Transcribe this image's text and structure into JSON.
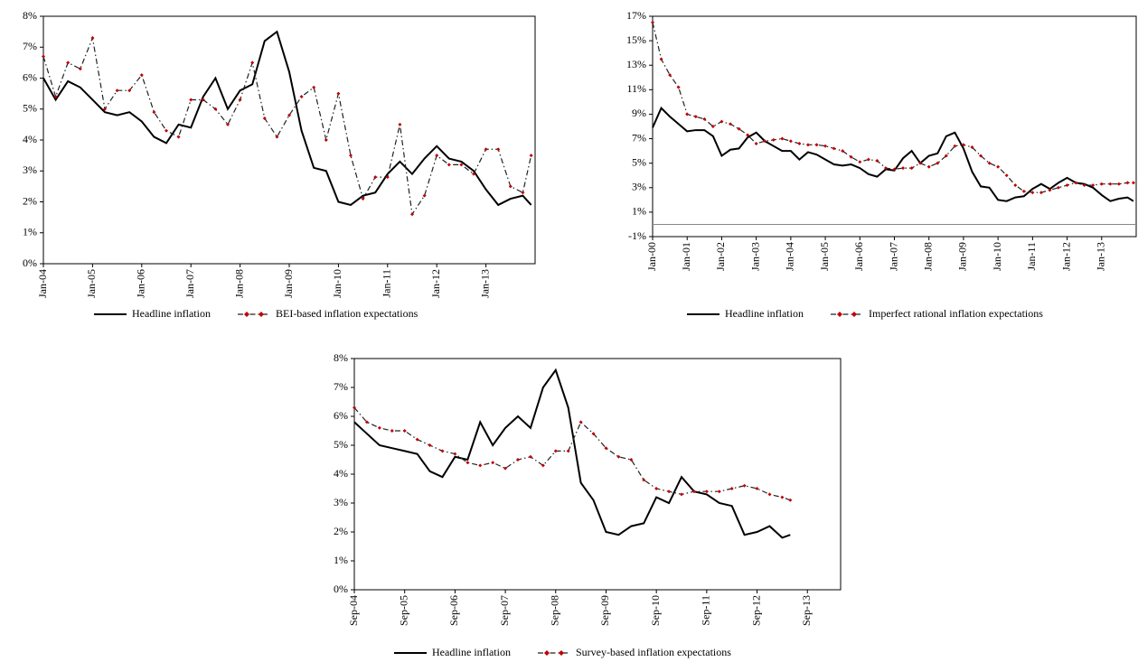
{
  "chart_data": [
    {
      "type": "line",
      "x": [
        2004,
        2004.25,
        2004.5,
        2004.75,
        2005,
        2005.25,
        2005.5,
        2005.75,
        2006,
        2006.25,
        2006.5,
        2006.75,
        2007,
        2007.25,
        2007.5,
        2007.75,
        2008,
        2008.25,
        2008.5,
        2008.75,
        2009,
        2009.25,
        2009.5,
        2009.75,
        2010,
        2010.25,
        2010.5,
        2010.75,
        2011,
        2011.25,
        2011.5,
        2011.75,
        2012,
        2012.25,
        2012.5,
        2012.75,
        2013,
        2013.25,
        2013.5,
        2013.75,
        2013.92
      ],
      "xlim": [
        2004,
        2014
      ],
      "xticks": [
        {
          "value": 2004,
          "label": "Jan-04"
        },
        {
          "value": 2005,
          "label": "Jan-05"
        },
        {
          "value": 2006,
          "label": "Jan-06"
        },
        {
          "value": 2007,
          "label": "Jan-07"
        },
        {
          "value": 2008,
          "label": "Jan-08"
        },
        {
          "value": 2009,
          "label": "Jan-09"
        },
        {
          "value": 2010,
          "label": "Jan-10"
        },
        {
          "value": 2011,
          "label": "Jan-11"
        },
        {
          "value": 2012,
          "label": "Jan-12"
        },
        {
          "value": 2013,
          "label": "Jan-13"
        }
      ],
      "ylim": [
        0,
        8
      ],
      "yticks": [
        {
          "value": 0,
          "label": "0%"
        },
        {
          "value": 1,
          "label": "1%"
        },
        {
          "value": 2,
          "label": "2%"
        },
        {
          "value": 3,
          "label": "3%"
        },
        {
          "value": 4,
          "label": "4%"
        },
        {
          "value": 5,
          "label": "5%"
        },
        {
          "value": 6,
          "label": "6%"
        },
        {
          "value": 7,
          "label": "7%"
        },
        {
          "value": 8,
          "label": "8%"
        }
      ],
      "series": [
        {
          "name": "Headline inflation",
          "color": "#000000",
          "style": "solid",
          "values": [
            6.0,
            5.3,
            5.9,
            5.7,
            5.3,
            4.9,
            4.8,
            4.9,
            4.6,
            4.1,
            3.9,
            4.5,
            4.4,
            5.4,
            6.0,
            5.0,
            5.6,
            5.8,
            7.2,
            7.5,
            6.2,
            4.3,
            3.1,
            3.0,
            2.0,
            1.9,
            2.2,
            2.3,
            2.9,
            3.3,
            2.9,
            3.4,
            3.8,
            3.4,
            3.3,
            3.0,
            2.4,
            1.9,
            2.1,
            2.2,
            1.9
          ]
        },
        {
          "name": "BEI-based inflation expectations",
          "color": "#c00000",
          "style": "dash-dot",
          "values": [
            6.7,
            5.4,
            6.5,
            6.3,
            7.3,
            5.0,
            5.6,
            5.6,
            6.1,
            4.9,
            4.3,
            4.1,
            5.3,
            5.3,
            5.0,
            4.5,
            5.3,
            6.5,
            4.7,
            4.1,
            4.8,
            5.4,
            5.7,
            4.0,
            5.5,
            3.5,
            2.1,
            2.8,
            2.8,
            4.5,
            1.6,
            2.2,
            3.5,
            3.2,
            3.2,
            2.9,
            3.7,
            3.7,
            2.5,
            2.3,
            3.5
          ]
        }
      ]
    },
    {
      "type": "line",
      "x": [
        2000,
        2000.25,
        2000.5,
        2000.75,
        2001,
        2001.25,
        2001.5,
        2001.75,
        2002,
        2002.25,
        2002.5,
        2002.75,
        2003,
        2003.25,
        2003.5,
        2003.75,
        2004,
        2004.25,
        2004.5,
        2004.75,
        2005,
        2005.25,
        2005.5,
        2005.75,
        2006,
        2006.25,
        2006.5,
        2006.75,
        2007,
        2007.25,
        2007.5,
        2007.75,
        2008,
        2008.25,
        2008.5,
        2008.75,
        2009,
        2009.25,
        2009.5,
        2009.75,
        2010,
        2010.25,
        2010.5,
        2010.75,
        2011,
        2011.25,
        2011.5,
        2011.75,
        2012,
        2012.25,
        2012.5,
        2012.75,
        2013,
        2013.25,
        2013.5,
        2013.75,
        2013.92
      ],
      "xlim": [
        2000,
        2014
      ],
      "xticks": [
        {
          "value": 2000,
          "label": "Jan-00"
        },
        {
          "value": 2001,
          "label": "Jan-01"
        },
        {
          "value": 2002,
          "label": "Jan-02"
        },
        {
          "value": 2003,
          "label": "Jan-03"
        },
        {
          "value": 2004,
          "label": "Jan-04"
        },
        {
          "value": 2005,
          "label": "Jan-05"
        },
        {
          "value": 2006,
          "label": "Jan-06"
        },
        {
          "value": 2007,
          "label": "Jan-07"
        },
        {
          "value": 2008,
          "label": "Jan-08"
        },
        {
          "value": 2009,
          "label": "Jan-09"
        },
        {
          "value": 2010,
          "label": "Jan-10"
        },
        {
          "value": 2011,
          "label": "Jan-11"
        },
        {
          "value": 2012,
          "label": "Jan-12"
        },
        {
          "value": 2013,
          "label": "Jan-13"
        }
      ],
      "ylim": [
        -1,
        17
      ],
      "yticks": [
        {
          "value": -1,
          "label": "-1%"
        },
        {
          "value": 1,
          "label": "1%"
        },
        {
          "value": 3,
          "label": "3%"
        },
        {
          "value": 5,
          "label": "5%"
        },
        {
          "value": 7,
          "label": "7%"
        },
        {
          "value": 9,
          "label": "9%"
        },
        {
          "value": 11,
          "label": "11%"
        },
        {
          "value": 13,
          "label": "13%"
        },
        {
          "value": 15,
          "label": "15%"
        },
        {
          "value": 17,
          "label": "17%"
        }
      ],
      "series": [
        {
          "name": "Headline inflation",
          "color": "#000000",
          "style": "solid",
          "values": [
            7.9,
            9.5,
            8.8,
            8.2,
            7.6,
            7.7,
            7.7,
            7.2,
            5.6,
            6.1,
            6.2,
            7.1,
            7.5,
            6.8,
            6.4,
            6.0,
            6.0,
            5.3,
            5.9,
            5.7,
            5.3,
            4.9,
            4.8,
            4.9,
            4.6,
            4.1,
            3.9,
            4.5,
            4.4,
            5.4,
            6.0,
            5.0,
            5.6,
            5.8,
            7.2,
            7.5,
            6.2,
            4.3,
            3.1,
            3.0,
            2.0,
            1.9,
            2.2,
            2.3,
            2.9,
            3.3,
            2.9,
            3.4,
            3.8,
            3.4,
            3.3,
            3.0,
            2.4,
            1.9,
            2.1,
            2.2,
            1.9
          ]
        },
        {
          "name": "Imperfect rational inflation expectations",
          "color": "#c00000",
          "style": "dash-dot",
          "values": [
            16.5,
            13.5,
            12.2,
            11.2,
            9.0,
            8.8,
            8.6,
            8.0,
            8.4,
            8.2,
            7.8,
            7.3,
            6.6,
            6.8,
            6.9,
            7.0,
            6.8,
            6.6,
            6.5,
            6.5,
            6.4,
            6.2,
            6.0,
            5.5,
            5.1,
            5.3,
            5.2,
            4.6,
            4.5,
            4.6,
            4.6,
            5.0,
            4.7,
            5.0,
            5.6,
            6.4,
            6.5,
            6.3,
            5.6,
            5.0,
            4.7,
            4.0,
            3.2,
            2.7,
            2.6,
            2.6,
            2.8,
            3.0,
            3.2,
            3.4,
            3.2,
            3.2,
            3.3,
            3.3,
            3.3,
            3.4,
            3.4
          ]
        }
      ]
    },
    {
      "type": "line",
      "x": [
        2004.67,
        2004.92,
        2005.17,
        2005.42,
        2005.67,
        2005.92,
        2006.17,
        2006.42,
        2006.67,
        2006.92,
        2007.17,
        2007.42,
        2007.67,
        2007.92,
        2008.17,
        2008.42,
        2008.67,
        2008.92,
        2009.17,
        2009.42,
        2009.67,
        2009.92,
        2010.17,
        2010.42,
        2010.67,
        2010.92,
        2011.17,
        2011.42,
        2011.67,
        2011.92,
        2012.17,
        2012.42,
        2012.67,
        2012.92,
        2013.17,
        2013.33
      ],
      "xlim": [
        2004.67,
        2014.33
      ],
      "xticks": [
        {
          "value": 2004.67,
          "label": "Sep-04"
        },
        {
          "value": 2005.67,
          "label": "Sep-05"
        },
        {
          "value": 2006.67,
          "label": "Sep-06"
        },
        {
          "value": 2007.67,
          "label": "Sep-07"
        },
        {
          "value": 2008.67,
          "label": "Sep-08"
        },
        {
          "value": 2009.67,
          "label": "Sep-09"
        },
        {
          "value": 2010.67,
          "label": "Sep-10"
        },
        {
          "value": 2011.67,
          "label": "Sep-11"
        },
        {
          "value": 2012.67,
          "label": "Sep-12"
        },
        {
          "value": 2013.67,
          "label": "Sep-13"
        }
      ],
      "ylim": [
        0,
        8
      ],
      "yticks": [
        {
          "value": 0,
          "label": "0%"
        },
        {
          "value": 1,
          "label": "1%"
        },
        {
          "value": 2,
          "label": "2%"
        },
        {
          "value": 3,
          "label": "3%"
        },
        {
          "value": 4,
          "label": "4%"
        },
        {
          "value": 5,
          "label": "5%"
        },
        {
          "value": 6,
          "label": "6%"
        },
        {
          "value": 7,
          "label": "7%"
        },
        {
          "value": 8,
          "label": "8%"
        }
      ],
      "series": [
        {
          "name": "Headline inflation",
          "color": "#000000",
          "style": "solid",
          "values": [
            5.8,
            5.4,
            5.0,
            4.9,
            4.8,
            4.7,
            4.1,
            3.9,
            4.6,
            4.5,
            5.8,
            5.0,
            5.6,
            6.0,
            5.6,
            7.0,
            7.6,
            6.3,
            3.7,
            3.1,
            2.0,
            1.9,
            2.2,
            2.3,
            3.2,
            3.0,
            3.9,
            3.4,
            3.3,
            3.0,
            2.9,
            1.9,
            2.0,
            2.2,
            1.8,
            1.9
          ]
        },
        {
          "name": "Survey-based inflation expectations",
          "color": "#c00000",
          "style": "dash-dot",
          "values": [
            6.3,
            5.8,
            5.6,
            5.5,
            5.5,
            5.2,
            5.0,
            4.8,
            4.7,
            4.4,
            4.3,
            4.4,
            4.2,
            4.5,
            4.6,
            4.3,
            4.8,
            4.8,
            5.8,
            5.4,
            4.9,
            4.6,
            4.5,
            3.8,
            3.5,
            3.4,
            3.3,
            3.4,
            3.4,
            3.4,
            3.5,
            3.6,
            3.5,
            3.3,
            3.2,
            3.1
          ]
        }
      ]
    }
  ]
}
